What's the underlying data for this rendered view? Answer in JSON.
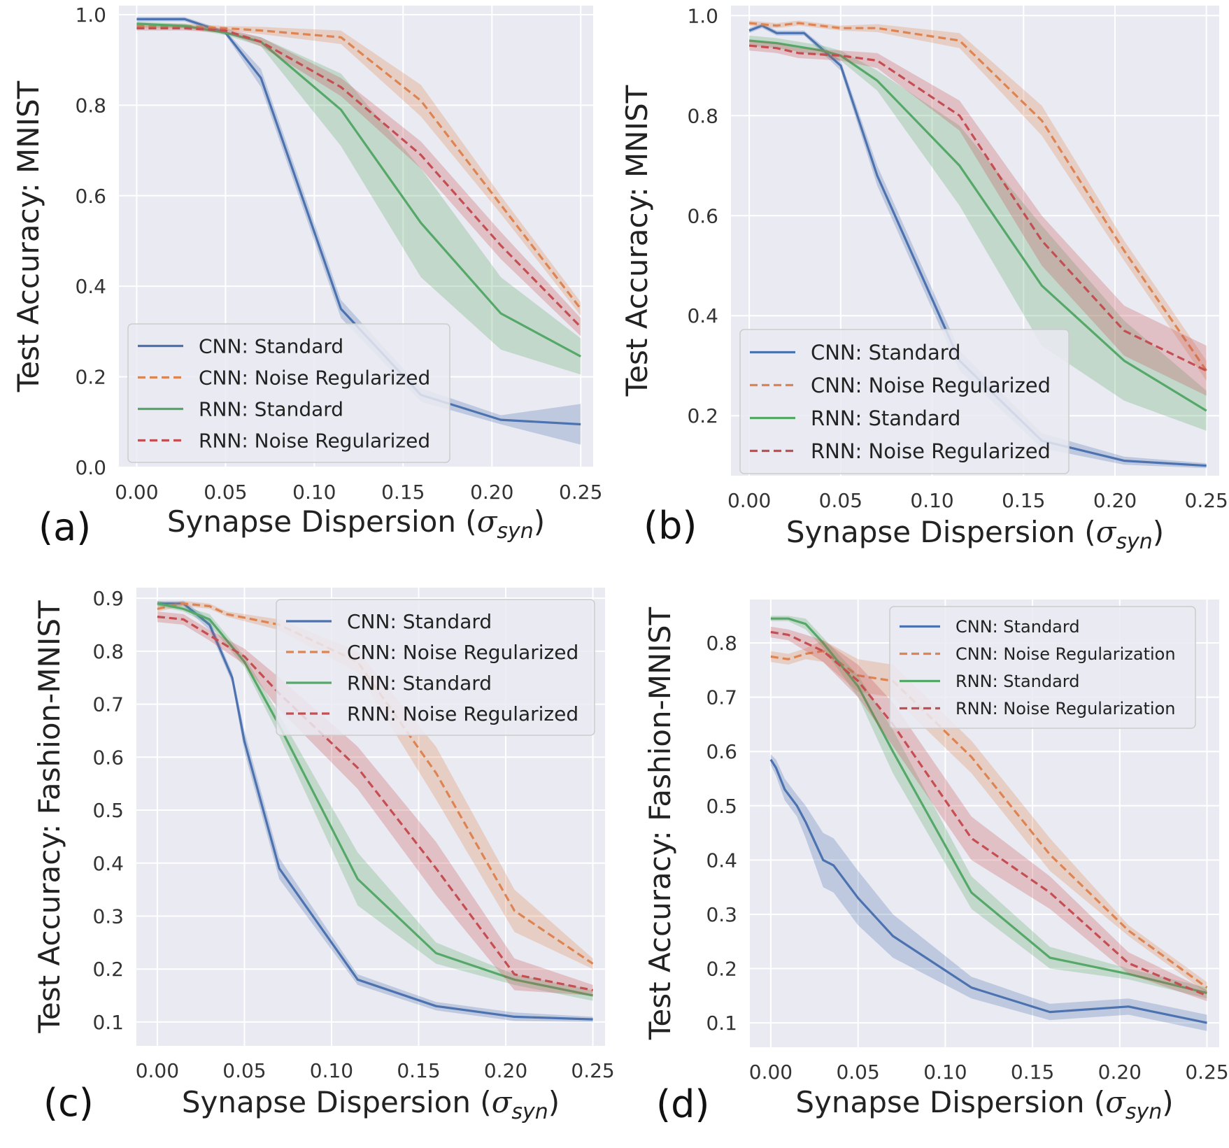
{
  "figure": {
    "series_colors": {
      "CNN: Standard": "#4c72b0",
      "CNN: Noise Regularized": "#dd8452",
      "RNN: Standard": "#55a868",
      "RNN: Noise Regularized": "#c44e52"
    },
    "background_color": "#eaeaf2",
    "grid_color": "#ffffff"
  },
  "chart_data": [
    {
      "panel": "(a)",
      "type": "line",
      "title": "",
      "xlabel": "Synapse Dispersion",
      "xlabel_symbol": "σ",
      "xlabel_subscript": "syn",
      "ylabel": "Test Accuracy: MNIST",
      "xlim": [
        -0.01,
        0.257
      ],
      "ylim": [
        0.0,
        1.02
      ],
      "xticks": [
        "0.00",
        "0.05",
        "0.10",
        "0.15",
        "0.20",
        "0.25"
      ],
      "yticks": [
        "0.0",
        "0.2",
        "0.4",
        "0.6",
        "0.8",
        "1.0"
      ],
      "legend_position": "lower-left",
      "series": [
        {
          "name": "CNN: Standard",
          "style": "solid",
          "x": [
            0,
            0.027,
            0.05,
            0.07,
            0.115,
            0.16,
            0.205,
            0.25
          ],
          "y": [
            0.99,
            0.99,
            0.96,
            0.86,
            0.35,
            0.16,
            0.105,
            0.095
          ],
          "band": [
            0.005,
            0.005,
            0.005,
            0.02,
            0.02,
            0.015,
            0.01,
            0.045
          ]
        },
        {
          "name": "CNN: Noise Regularized",
          "style": "dashed",
          "x": [
            0,
            0.027,
            0.05,
            0.07,
            0.115,
            0.16,
            0.205,
            0.25
          ],
          "y": [
            0.975,
            0.975,
            0.97,
            0.965,
            0.95,
            0.81,
            0.58,
            0.35
          ],
          "band": [
            0.005,
            0.005,
            0.005,
            0.008,
            0.015,
            0.035,
            0.02,
            0.015
          ]
        },
        {
          "name": "RNN: Standard",
          "style": "solid",
          "x": [
            0,
            0.027,
            0.05,
            0.07,
            0.115,
            0.16,
            0.205,
            0.25
          ],
          "y": [
            0.98,
            0.975,
            0.96,
            0.94,
            0.79,
            0.54,
            0.34,
            0.245
          ],
          "band": [
            0.005,
            0.005,
            0.005,
            0.01,
            0.08,
            0.12,
            0.08,
            0.04
          ]
        },
        {
          "name": "RNN: Noise Regularized",
          "style": "dashed",
          "x": [
            0,
            0.027,
            0.05,
            0.07,
            0.115,
            0.16,
            0.205,
            0.25
          ],
          "y": [
            0.97,
            0.97,
            0.965,
            0.94,
            0.84,
            0.69,
            0.49,
            0.31
          ],
          "band": [
            0.005,
            0.005,
            0.005,
            0.01,
            0.02,
            0.03,
            0.03,
            0.02
          ]
        }
      ]
    },
    {
      "panel": "(b)",
      "type": "line",
      "title": "",
      "xlabel": "Synapse Dispersion",
      "xlabel_symbol": "σ",
      "xlabel_subscript": "syn",
      "ylabel": "Test Accuracy: MNIST",
      "xlim": [
        -0.01,
        0.257
      ],
      "ylim": [
        0.08,
        1.02
      ],
      "xticks": [
        "0.00",
        "0.05",
        "0.10",
        "0.15",
        "0.20",
        "0.25"
      ],
      "yticks": [
        "0.2",
        "0.4",
        "0.6",
        "0.8",
        "1.0"
      ],
      "legend_position": "lower-left",
      "series": [
        {
          "name": "CNN: Standard",
          "style": "solid",
          "x": [
            0,
            0.007,
            0.015,
            0.03,
            0.05,
            0.07,
            0.115,
            0.16,
            0.205,
            0.25
          ],
          "y": [
            0.97,
            0.98,
            0.965,
            0.965,
            0.9,
            0.68,
            0.31,
            0.15,
            0.11,
            0.1
          ],
          "band": [
            0.005,
            0.005,
            0.005,
            0.005,
            0.01,
            0.02,
            0.02,
            0.015,
            0.008,
            0.005
          ]
        },
        {
          "name": "CNN: Noise Regularized",
          "style": "dashed",
          "x": [
            0,
            0.015,
            0.027,
            0.05,
            0.07,
            0.115,
            0.16,
            0.205,
            0.25
          ],
          "y": [
            0.985,
            0.98,
            0.985,
            0.975,
            0.975,
            0.95,
            0.79,
            0.53,
            0.29
          ],
          "band": [
            0.005,
            0.005,
            0.005,
            0.005,
            0.008,
            0.015,
            0.03,
            0.02,
            0.02
          ]
        },
        {
          "name": "RNN: Standard",
          "style": "solid",
          "x": [
            0,
            0.015,
            0.04,
            0.05,
            0.07,
            0.115,
            0.16,
            0.205,
            0.25
          ],
          "y": [
            0.95,
            0.945,
            0.93,
            0.92,
            0.87,
            0.7,
            0.46,
            0.31,
            0.21
          ],
          "band": [
            0.01,
            0.01,
            0.01,
            0.01,
            0.02,
            0.08,
            0.12,
            0.08,
            0.04
          ]
        },
        {
          "name": "RNN: Noise Regularized",
          "style": "dashed",
          "x": [
            0,
            0.015,
            0.027,
            0.05,
            0.07,
            0.115,
            0.16,
            0.205,
            0.25
          ],
          "y": [
            0.94,
            0.935,
            0.925,
            0.92,
            0.91,
            0.8,
            0.55,
            0.37,
            0.29
          ],
          "band": [
            0.01,
            0.01,
            0.01,
            0.01,
            0.015,
            0.03,
            0.05,
            0.05,
            0.05
          ]
        }
      ]
    },
    {
      "panel": "(c)",
      "type": "line",
      "title": "",
      "xlabel": "Synapse Dispersion",
      "xlabel_symbol": "σ",
      "xlabel_subscript": "syn",
      "ylabel": "Test Accuracy: Fashion-MNIST",
      "xlim": [
        -0.012,
        0.257
      ],
      "ylim": [
        0.055,
        0.92
      ],
      "xticks": [
        "0.00",
        "0.05",
        "0.10",
        "0.15",
        "0.20",
        "0.25"
      ],
      "yticks": [
        "0.1",
        "0.2",
        "0.3",
        "0.4",
        "0.5",
        "0.6",
        "0.7",
        "0.8",
        "0.9"
      ],
      "legend_position": "upper-right",
      "series": [
        {
          "name": "CNN: Standard",
          "style": "solid",
          "x": [
            0,
            0.015,
            0.03,
            0.043,
            0.05,
            0.07,
            0.115,
            0.16,
            0.205,
            0.25
          ],
          "y": [
            0.89,
            0.89,
            0.85,
            0.75,
            0.63,
            0.39,
            0.18,
            0.13,
            0.11,
            0.105
          ],
          "band": [
            0.005,
            0.005,
            0.01,
            0.01,
            0.02,
            0.02,
            0.01,
            0.008,
            0.008,
            0.005
          ]
        },
        {
          "name": "CNN: Noise Regularized",
          "style": "dashed",
          "x": [
            0,
            0.015,
            0.03,
            0.04,
            0.07,
            0.115,
            0.16,
            0.205,
            0.25
          ],
          "y": [
            0.88,
            0.89,
            0.885,
            0.87,
            0.85,
            0.78,
            0.57,
            0.31,
            0.21
          ],
          "band": [
            0.005,
            0.005,
            0.005,
            0.005,
            0.01,
            0.02,
            0.05,
            0.04,
            0.01
          ]
        },
        {
          "name": "RNN: Standard",
          "style": "solid",
          "x": [
            0,
            0.015,
            0.03,
            0.05,
            0.07,
            0.115,
            0.16,
            0.205,
            0.25
          ],
          "y": [
            0.89,
            0.88,
            0.86,
            0.78,
            0.66,
            0.37,
            0.23,
            0.18,
            0.15
          ],
          "band": [
            0.005,
            0.005,
            0.01,
            0.01,
            0.02,
            0.05,
            0.02,
            0.01,
            0.01
          ]
        },
        {
          "name": "RNN: Noise Regularized",
          "style": "dashed",
          "x": [
            0,
            0.015,
            0.03,
            0.05,
            0.07,
            0.115,
            0.16,
            0.205,
            0.25
          ],
          "y": [
            0.865,
            0.86,
            0.83,
            0.79,
            0.72,
            0.58,
            0.39,
            0.19,
            0.16
          ],
          "band": [
            0.01,
            0.01,
            0.01,
            0.015,
            0.03,
            0.04,
            0.05,
            0.03,
            0.01
          ]
        }
      ]
    },
    {
      "panel": "(d)",
      "type": "line",
      "title": "",
      "xlabel": "Synapse Dispersion",
      "xlabel_symbol": "σ",
      "xlabel_subscript": "syn",
      "ylabel": "Test Accuracy: Fashion-MNIST",
      "xlim": [
        -0.012,
        0.257
      ],
      "ylim": [
        0.055,
        0.88
      ],
      "xticks": [
        "0.00",
        "0.05",
        "0.10",
        "0.15",
        "0.20",
        "0.25"
      ],
      "yticks": [
        "0.1",
        "0.2",
        "0.3",
        "0.4",
        "0.5",
        "0.6",
        "0.7",
        "0.8"
      ],
      "legend_position": "upper-right",
      "series": [
        {
          "name": "CNN: Standard",
          "style": "solid",
          "x": [
            0,
            0.003,
            0.008,
            0.015,
            0.02,
            0.03,
            0.036,
            0.05,
            0.07,
            0.115,
            0.16,
            0.205,
            0.25
          ],
          "y": [
            0.585,
            0.57,
            0.53,
            0.5,
            0.47,
            0.4,
            0.39,
            0.33,
            0.26,
            0.165,
            0.12,
            0.13,
            0.1
          ],
          "band": [
            0.01,
            0.015,
            0.02,
            0.02,
            0.03,
            0.05,
            0.05,
            0.05,
            0.04,
            0.02,
            0.015,
            0.015,
            0.015
          ]
        },
        {
          "name": "CNN: Noise Regularization",
          "style": "dashed",
          "x": [
            0,
            0.01,
            0.02,
            0.03,
            0.05,
            0.07,
            0.115,
            0.16,
            0.205,
            0.25
          ],
          "y": [
            0.775,
            0.77,
            0.78,
            0.785,
            0.74,
            0.73,
            0.59,
            0.41,
            0.27,
            0.165
          ],
          "band": [
            0.01,
            0.01,
            0.01,
            0.02,
            0.03,
            0.03,
            0.03,
            0.03,
            0.01,
            0.01
          ]
        },
        {
          "name": "RNN: Standard",
          "style": "solid",
          "x": [
            0,
            0.01,
            0.02,
            0.03,
            0.05,
            0.07,
            0.115,
            0.16,
            0.205,
            0.25
          ],
          "y": [
            0.845,
            0.845,
            0.835,
            0.8,
            0.72,
            0.6,
            0.34,
            0.22,
            0.19,
            0.155
          ],
          "band": [
            0.005,
            0.005,
            0.01,
            0.01,
            0.02,
            0.04,
            0.03,
            0.02,
            0.01,
            0.01
          ]
        },
        {
          "name": "RNN: Noise Regularization",
          "style": "dashed",
          "x": [
            0,
            0.01,
            0.02,
            0.03,
            0.05,
            0.07,
            0.115,
            0.16,
            0.205,
            0.25
          ],
          "y": [
            0.82,
            0.815,
            0.8,
            0.785,
            0.73,
            0.65,
            0.44,
            0.34,
            0.21,
            0.15
          ],
          "band": [
            0.01,
            0.01,
            0.015,
            0.02,
            0.03,
            0.04,
            0.04,
            0.03,
            0.02,
            0.01
          ]
        }
      ]
    }
  ]
}
